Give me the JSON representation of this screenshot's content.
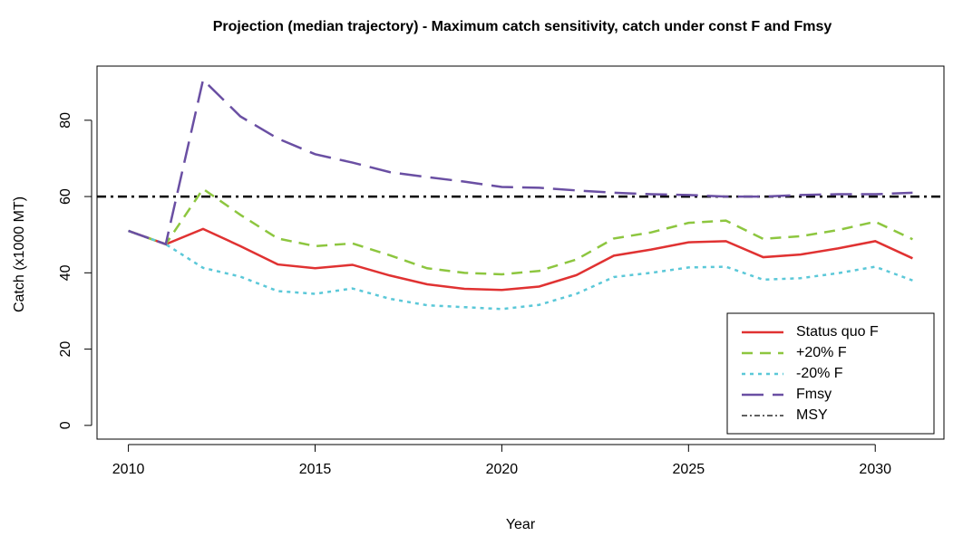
{
  "chart_data": {
    "type": "line",
    "title": "Projection (median trajectory) - Maximum catch sensitivity, catch under const F and Fmsy",
    "x_label": "Year",
    "y_label": "Catch (x1000 MT)",
    "x": [
      2010,
      2011,
      2012,
      2013,
      2014,
      2015,
      2016,
      2017,
      2018,
      2019,
      2020,
      2021,
      2022,
      2023,
      2024,
      2025,
      2026,
      2027,
      2028,
      2029,
      2030,
      2031
    ],
    "series": [
      {
        "name": "Status quo F",
        "color": "#e03232",
        "dash": "solid",
        "values": [
          51,
          47.5,
          51.5,
          47,
          42.2,
          41.2,
          42.1,
          39.3,
          37,
          35.8,
          35.5,
          36.4,
          39.4,
          44.5,
          46.1,
          48,
          48.3,
          44.1,
          44.8,
          46.4,
          48.3,
          43.8
        ]
      },
      {
        "name": "+20% F",
        "color": "#8dc63f",
        "dash": "dashed",
        "values": [
          51,
          47.5,
          62,
          55.2,
          49,
          47,
          47.7,
          44.6,
          41.2,
          40,
          39.6,
          40.5,
          43.5,
          49,
          50.6,
          53.1,
          53.7,
          48.9,
          49.6,
          51.2,
          53.4,
          48.8
        ]
      },
      {
        "name": "-20% F",
        "color": "#5bc8d8",
        "dash": "dotted",
        "values": [
          51,
          47.5,
          41.3,
          39,
          35.2,
          34.5,
          35.9,
          33.2,
          31.5,
          31,
          30.5,
          31.6,
          34.5,
          38.9,
          40,
          41.4,
          41.6,
          38.2,
          38.6,
          39.9,
          41.6,
          38
        ]
      },
      {
        "name": "Fmsy",
        "color": "#6a4fa3",
        "dash": "longdash",
        "values": [
          51,
          47.5,
          90.6,
          81,
          75.2,
          71.1,
          68.9,
          66.4,
          65.1,
          63.9,
          62.5,
          62.3,
          61.6,
          61,
          60.6,
          60.4,
          60,
          60,
          60.4,
          60.6,
          60.6,
          61
        ]
      }
    ],
    "reference_line": {
      "name": "MSY",
      "color": "#000000",
      "value": 60
    },
    "xlim": [
      2009.16,
      2031.84
    ],
    "xticks": [
      2010,
      2015,
      2020,
      2025,
      2030
    ],
    "ylim": [
      -3.6,
      94.2
    ],
    "yticks": [
      0,
      20,
      40,
      60,
      80
    ],
    "legend": "bottom-right"
  }
}
